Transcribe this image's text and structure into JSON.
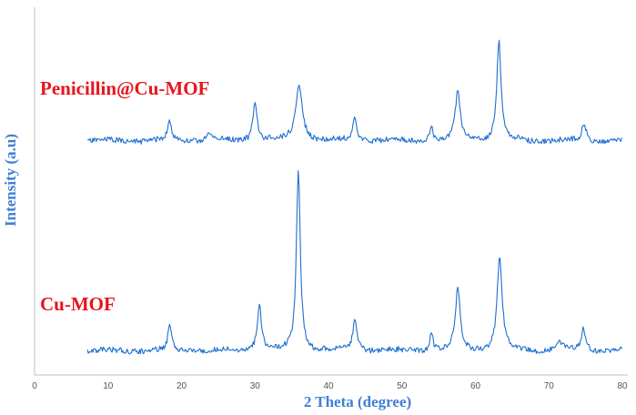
{
  "chart_data": {
    "type": "line",
    "title": "",
    "xlabel": "2 Theta (degree)",
    "ylabel": "Intensity (a.u)",
    "xlim": [
      0,
      80
    ],
    "xticks": [
      "0",
      "10",
      "20",
      "30",
      "40",
      "50",
      "60",
      "70",
      "80"
    ],
    "y_ticks_shown": false,
    "grid": false,
    "legend": "none",
    "line_color": "#1e6fd0",
    "label_color": "#e8141b",
    "series": [
      {
        "name": "Penicillin@Cu-MOF",
        "x_range": [
          7.2,
          80
        ],
        "baseline": 0.1,
        "peaks": [
          {
            "x": 18.4,
            "h": 0.25,
            "w": 0.3
          },
          {
            "x": 23.8,
            "h": 0.08,
            "w": 0.5
          },
          {
            "x": 30.0,
            "h": 0.48,
            "w": 0.35
          },
          {
            "x": 36.0,
            "h": 0.72,
            "w": 0.55
          },
          {
            "x": 43.6,
            "h": 0.28,
            "w": 0.35
          },
          {
            "x": 54.0,
            "h": 0.18,
            "w": 0.25
          },
          {
            "x": 57.6,
            "h": 0.62,
            "w": 0.4
          },
          {
            "x": 63.2,
            "h": 1.28,
            "w": 0.35
          },
          {
            "x": 74.8,
            "h": 0.22,
            "w": 0.35
          }
        ]
      },
      {
        "name": "Cu-MOF",
        "x_range": [
          7.2,
          80
        ],
        "baseline": 0.07,
        "peaks": [
          {
            "x": 18.4,
            "h": 0.27,
            "w": 0.28
          },
          {
            "x": 30.6,
            "h": 0.45,
            "w": 0.35
          },
          {
            "x": 35.9,
            "h": 1.82,
            "w": 0.32
          },
          {
            "x": 43.6,
            "h": 0.3,
            "w": 0.35
          },
          {
            "x": 54.0,
            "h": 0.2,
            "w": 0.25
          },
          {
            "x": 57.6,
            "h": 0.62,
            "w": 0.38
          },
          {
            "x": 63.3,
            "h": 0.95,
            "w": 0.4
          },
          {
            "x": 71.4,
            "h": 0.1,
            "w": 0.4
          },
          {
            "x": 74.7,
            "h": 0.22,
            "w": 0.35
          }
        ]
      }
    ]
  }
}
